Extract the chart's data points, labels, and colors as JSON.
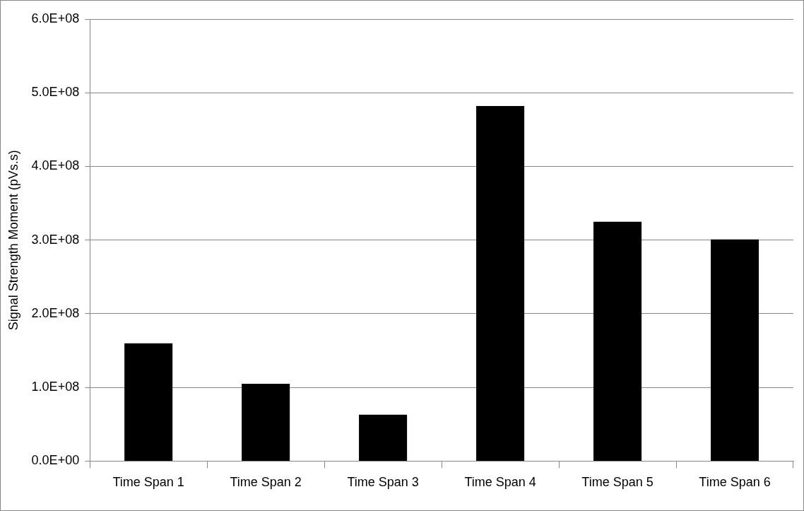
{
  "chart_data": {
    "type": "bar",
    "ylabel": "Signal Strength Moment (pVs.s)",
    "categories": [
      "Time Span 1",
      "Time Span 2",
      "Time Span 3",
      "Time Span 4",
      "Time Span 5",
      "Time Span 6"
    ],
    "values": [
      160000000,
      105000000,
      63000000,
      482000000,
      325000000,
      301000000
    ],
    "color": "#000000",
    "ylim": [
      0,
      600000000
    ],
    "yticks": [
      {
        "value": 0,
        "label": "0.0E+00"
      },
      {
        "value": 100000000,
        "label": "1.0E+08"
      },
      {
        "value": 200000000,
        "label": "2.0E+08"
      },
      {
        "value": 300000000,
        "label": "3.0E+08"
      },
      {
        "value": 400000000,
        "label": "4.0E+08"
      },
      {
        "value": 500000000,
        "label": "5.0E+08"
      },
      {
        "value": 600000000,
        "label": "6.0E+08"
      }
    ],
    "grid": "y",
    "legend": false
  }
}
